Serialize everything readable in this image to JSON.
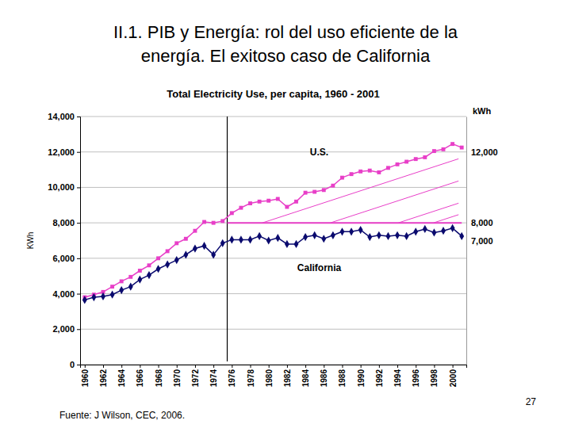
{
  "title_lines": [
    "II.1. PIB y Energía: rol del uso eficiente de la",
    "energía. El exitoso caso de California"
  ],
  "source": "Fuente: J Wilson, CEC, 2006.",
  "page_number": 27,
  "chart_data": {
    "type": "line",
    "title": "Total Electricity Use,  per capita, 1960 - 2001",
    "y_label": "KWh",
    "y2_label": "kWh",
    "x": [
      1960,
      1961,
      1962,
      1963,
      1964,
      1965,
      1966,
      1967,
      1968,
      1969,
      1970,
      1971,
      1972,
      1973,
      1974,
      1975,
      1976,
      1977,
      1978,
      1979,
      1980,
      1981,
      1982,
      1983,
      1984,
      1985,
      1986,
      1987,
      1988,
      1989,
      1990,
      1991,
      1992,
      1993,
      1994,
      1995,
      1996,
      1997,
      1998,
      1999,
      2000,
      2001
    ],
    "series": [
      {
        "name": "U.S.",
        "color": "#e83fc8",
        "marker": "square",
        "values": [
          3800,
          3950,
          4100,
          4400,
          4700,
          4950,
          5300,
          5600,
          6000,
          6400,
          6850,
          7100,
          7550,
          8050,
          8000,
          8100,
          8550,
          8850,
          9100,
          9200,
          9250,
          9350,
          8900,
          9200,
          9700,
          9750,
          9850,
          10100,
          10550,
          10750,
          10900,
          10950,
          10850,
          11100,
          11300,
          11450,
          11600,
          11700,
          12050,
          12150,
          12450,
          12250
        ]
      },
      {
        "name": "California",
        "color": "#0a0a6e",
        "marker": "diamond",
        "values": [
          3650,
          3800,
          3850,
          3950,
          4200,
          4400,
          4800,
          5050,
          5400,
          5650,
          5900,
          6200,
          6550,
          6700,
          6200,
          6850,
          7050,
          7050,
          7050,
          7250,
          7000,
          7150,
          6800,
          6800,
          7200,
          7300,
          7100,
          7300,
          7500,
          7500,
          7600,
          7200,
          7300,
          7250,
          7300,
          7250,
          7500,
          7650,
          7450,
          7550,
          7700,
          7250
        ]
      }
    ],
    "xlim": [
      1959.5,
      2001.5
    ],
    "xticks": [
      1960,
      1962,
      1964,
      1966,
      1968,
      1970,
      1972,
      1974,
      1976,
      1978,
      1980,
      1982,
      1984,
      1986,
      1988,
      1990,
      1992,
      1994,
      1996,
      1998,
      2000
    ],
    "ylim": [
      0,
      14000
    ],
    "yticks": [
      0,
      {
        "value": 2000,
        "label": "2,000"
      },
      {
        "value": 4000,
        "label": "4,000"
      },
      {
        "value": 6000,
        "label": "6,000"
      },
      {
        "value": 8000,
        "label": "8,000"
      },
      {
        "value": 10000,
        "label": "10,000"
      },
      {
        "value": 12000,
        "label": "12,000"
      },
      {
        "value": 14000,
        "label": "14,000"
      }
    ],
    "y2lim": [
      0,
      14000
    ],
    "y2ticks": [
      {
        "value": 7000,
        "label": "7,000"
      },
      {
        "value": 8000,
        "label": "8,000"
      },
      {
        "value": 12000,
        "label": "12,000"
      }
    ],
    "grid": true,
    "annotations": [
      {
        "text": "U.S.",
        "x": 1985.5,
        "y": 11800
      },
      {
        "text": "California",
        "x": 1985.5,
        "y": 5300
      }
    ],
    "reference_lines": [
      {
        "axis": "x",
        "value": 1975.5,
        "color": "#000000"
      },
      {
        "axis": "y",
        "value": 8000,
        "from": 1975.5,
        "to": 2001,
        "color": "#e83fc8"
      }
    ]
  }
}
